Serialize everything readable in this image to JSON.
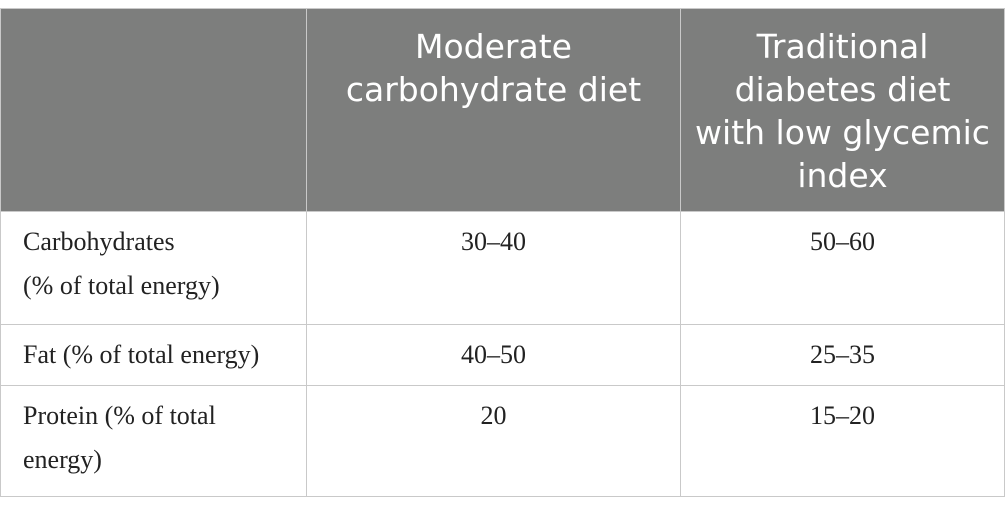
{
  "table": {
    "headers": [
      "",
      "Moderate carbohydrate diet",
      "Traditional diabetes diet with low glycemic index"
    ],
    "rows": [
      {
        "label": "Carbohydrates\n(% of total energy)",
        "values": [
          "30–40",
          "50–60"
        ]
      },
      {
        "label": "Fat (% of total energy)",
        "values": [
          "40–50",
          "25–35"
        ]
      },
      {
        "label": "Protein (% of total\nenergy)",
        "values": [
          "20",
          "15–20"
        ]
      }
    ]
  },
  "colors": {
    "header_bg": "#7d7e7d",
    "header_text": "#ffffff",
    "border": "#c9c9c9",
    "body_text": "#222222"
  }
}
